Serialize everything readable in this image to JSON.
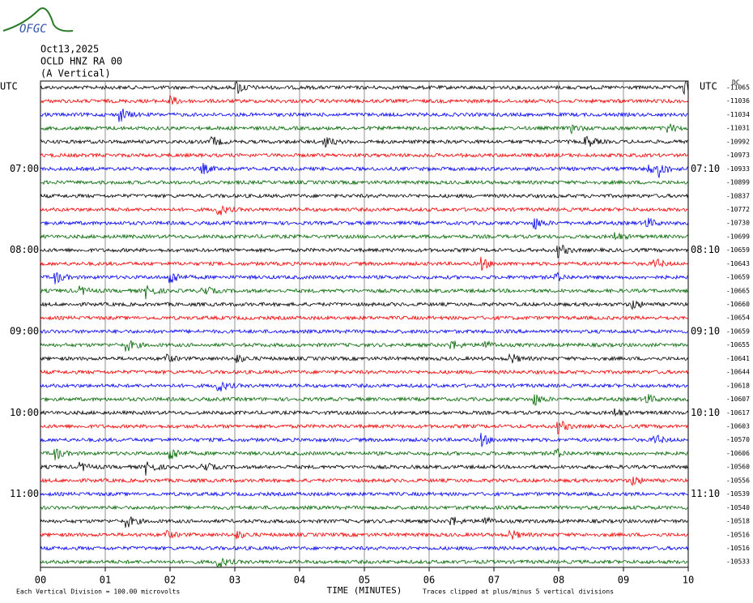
{
  "logo": "OFGC",
  "header": {
    "date": "Oct13,2025",
    "station": "OCLD HNZ RA 00",
    "component": "(A Vertical)"
  },
  "left_axis": {
    "title": "UTC",
    "labels": [
      "07:00",
      "08:00",
      "09:00",
      "10:00",
      "11:00"
    ]
  },
  "right_axis": {
    "title": "UTC",
    "dc": "DC",
    "labels": [
      "07:10",
      "08:10",
      "09:10",
      "10:10",
      "11:10"
    ],
    "offsets": [
      "-11065",
      "-11036",
      "-11034",
      "-11031",
      "-10992",
      "-10973",
      "-10933",
      "-10899",
      "-10837",
      "-10772",
      "-10730",
      "-10699",
      "-10659",
      "-10643",
      "-10659",
      "-10665",
      "-10660",
      "-10654",
      "-10659",
      "-10655",
      "-10641",
      "-10644",
      "-10618",
      "-10607",
      "-10617",
      "-10603",
      "-10570",
      "-10606",
      "-10560",
      "-10556",
      "-10539",
      "-10540",
      "-10518",
      "-10516",
      "-10516",
      "-10533"
    ]
  },
  "x_axis": {
    "title": "TIME (MINUTES)",
    "ticks": [
      "00",
      "01",
      "02",
      "03",
      "04",
      "05",
      "06",
      "07",
      "08",
      "09",
      "10"
    ]
  },
  "footer": {
    "scale": "Each Vertical Division =  100.00 microvolts",
    "clip": "Traces clipped at plus/minus 5 vertical divisions"
  }
}
